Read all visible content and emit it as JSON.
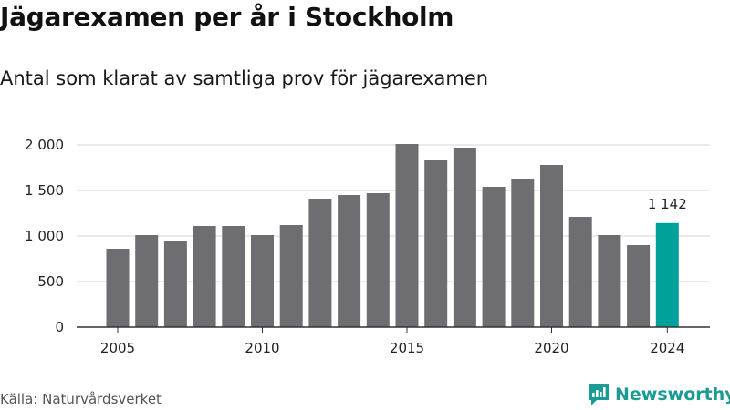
{
  "header": {
    "title": "Jägarexamen per år i Stockholm",
    "subtitle": "Antal som klarat av samtliga prov för jägarexamen"
  },
  "footer": {
    "source": "Källa: Naturvårdsverket",
    "brand": "Newsworthy"
  },
  "colors": {
    "bar": "#6e6d72",
    "highlight": "#00a19a",
    "grid": "#d4d4d4",
    "axis": "#333333",
    "brand": "#1a9b93"
  },
  "chart_data": {
    "type": "bar",
    "title": "Jägarexamen per år i Stockholm",
    "subtitle": "Antal som klarat av samtliga prov för jägarexamen",
    "categories": [
      2005,
      2006,
      2007,
      2008,
      2009,
      2010,
      2011,
      2012,
      2013,
      2014,
      2015,
      2016,
      2017,
      2018,
      2019,
      2020,
      2021,
      2022,
      2023,
      2024
    ],
    "values": [
      860,
      1010,
      940,
      1110,
      1110,
      1010,
      1120,
      1410,
      1450,
      1470,
      2010,
      1830,
      1970,
      1540,
      1630,
      1780,
      1210,
      1010,
      900,
      1142
    ],
    "highlight_category": 2024,
    "highlight_label": "1 142",
    "ylim": [
      0,
      2000
    ],
    "yticks": [
      0,
      500,
      1000,
      1500,
      2000
    ],
    "ytick_labels": [
      "0",
      "500",
      "1 000",
      "1 500",
      "2 000"
    ],
    "xticks": [
      2005,
      2010,
      2015,
      2020,
      2024
    ],
    "xtick_labels": [
      "2005",
      "2010",
      "2015",
      "2020",
      "2024"
    ],
    "xlabel": "",
    "ylabel": "",
    "grid": true,
    "legend": "none"
  }
}
